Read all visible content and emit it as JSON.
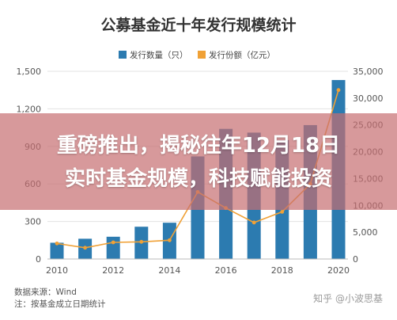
{
  "chart_data": {
    "type": "bar",
    "title": "公募基金近十年发行规模统计",
    "x": [
      2010,
      2011,
      2012,
      2013,
      2014,
      2015,
      2016,
      2017,
      2018,
      2019,
      2020
    ],
    "x_ticks": [
      "2010",
      "2012",
      "2014",
      "2016",
      "2018",
      "2020"
    ],
    "series": [
      {
        "name": "发行数量（只）",
        "type": "bar",
        "axis": "left",
        "color": "#2c7bb0",
        "values": [
          130,
          162,
          178,
          258,
          290,
          820,
          1040,
          1010,
          950,
          1070,
          1430
        ]
      },
      {
        "name": "发行份额（亿元）",
        "type": "line",
        "axis": "right",
        "color": "#f0a136",
        "values": [
          2900,
          2100,
          3100,
          3200,
          3500,
          12500,
          9500,
          6800,
          8800,
          14000,
          31500
        ]
      }
    ],
    "y_left": {
      "min": 0,
      "max": 1500,
      "ticks": [
        "0",
        "300",
        "600",
        "900",
        "1,200",
        "1,500"
      ]
    },
    "y_right": {
      "min": 0,
      "max": 35000,
      "ticks": [
        "0",
        "5,000",
        "10,000",
        "15,000",
        "20,000",
        "25,000",
        "30,000",
        "35,000"
      ]
    },
    "legend_position": "top-center",
    "grid": true
  },
  "overlay": {
    "line1": "重磅推出，揭秘往年12月18日",
    "line2": "实时基金规模，科技赋能投资"
  },
  "source": {
    "line1": "数据来源：Wind",
    "line2": "注：按基金成立日期统计"
  },
  "watermark": "知乎 @小波思基"
}
